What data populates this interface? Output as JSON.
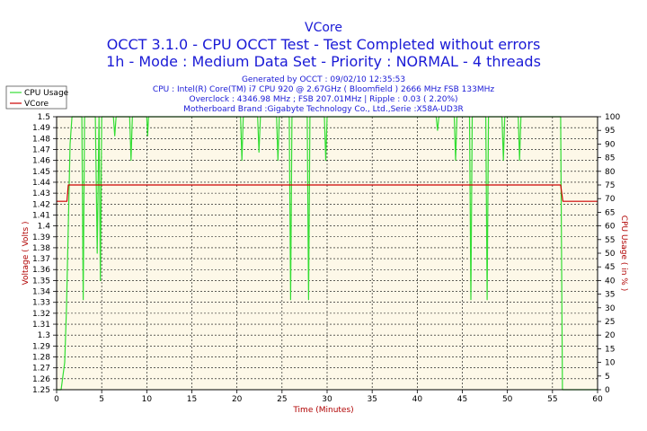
{
  "chart_data": {
    "type": "line",
    "title": "VCore",
    "subtitle_lines": [
      "OCCT 3.1.0 - CPU OCCT Test - Test Completed without errors",
      "1h - Mode : Medium Data Set - Priority : NORMAL - 4 threads"
    ],
    "info_lines": [
      "Generated by OCCT : 09/02/10 12:35:53",
      "CPU : Intel(R) Core(TM) i7 CPU 920 @ 2.67GHz ( Bloomfield ) 2666 MHz FSB 133MHz",
      "Overclock : 4346.98 MHz ; FSB 207.01MHz | Ripple : 0.03 ( 2.20%)",
      "Motherboard Brand :Gigabyte Technology Co., Ltd.,Serie :X58A-UD3R"
    ],
    "xlabel": "Time (Minutes)",
    "ylabel": "Voltage ( Volts )",
    "y2label": "CPU Usage ( in % )",
    "xlim": [
      0,
      60
    ],
    "ylim": [
      1.25,
      1.5
    ],
    "y2lim": [
      0,
      100
    ],
    "x_ticks": [
      "0",
      "5",
      "10",
      "15",
      "20",
      "25",
      "30",
      "35",
      "40",
      "45",
      "50",
      "55",
      "60"
    ],
    "y_ticks": [
      "1.25",
      "1.26",
      "1.27",
      "1.28",
      "1.29",
      "1.3",
      "1.31",
      "1.32",
      "1.33",
      "1.34",
      "1.35",
      "1.36",
      "1.37",
      "1.38",
      "1.39",
      "1.4",
      "1.41",
      "1.42",
      "1.43",
      "1.44",
      "1.45",
      "1.46",
      "1.47",
      "1.48",
      "1.49",
      "1.5"
    ],
    "y2_ticks": [
      "0",
      "5",
      "10",
      "15",
      "20",
      "25",
      "30",
      "35",
      "40",
      "45",
      "50",
      "55",
      "60",
      "65",
      "70",
      "75",
      "80",
      "85",
      "90",
      "95",
      "100"
    ],
    "grid": true,
    "legend_position": "top-left",
    "series": [
      {
        "name": "CPU Usage",
        "axis": "right",
        "color": "#33dd33",
        "points": [
          [
            0.0,
            0
          ],
          [
            0.5,
            0
          ],
          [
            0.9,
            10
          ],
          [
            1.1,
            30
          ],
          [
            1.3,
            60
          ],
          [
            1.5,
            90
          ],
          [
            1.7,
            100
          ],
          [
            2.8,
            100
          ],
          [
            2.95,
            33
          ],
          [
            3.1,
            100
          ],
          [
            4.3,
            100
          ],
          [
            4.5,
            50
          ],
          [
            4.7,
            100
          ],
          [
            4.85,
            40
          ],
          [
            5.0,
            100
          ],
          [
            6.3,
            100
          ],
          [
            6.45,
            93
          ],
          [
            6.6,
            100
          ],
          [
            8.1,
            100
          ],
          [
            8.25,
            84
          ],
          [
            8.4,
            100
          ],
          [
            10.0,
            100
          ],
          [
            10.1,
            93
          ],
          [
            10.2,
            100
          ],
          [
            20.4,
            100
          ],
          [
            20.55,
            84
          ],
          [
            20.7,
            100
          ],
          [
            22.3,
            100
          ],
          [
            22.45,
            87
          ],
          [
            22.6,
            100
          ],
          [
            24.4,
            100
          ],
          [
            24.55,
            84
          ],
          [
            24.7,
            100
          ],
          [
            25.8,
            100
          ],
          [
            25.95,
            33
          ],
          [
            26.1,
            100
          ],
          [
            27.8,
            100
          ],
          [
            27.95,
            33
          ],
          [
            28.1,
            100
          ],
          [
            29.7,
            100
          ],
          [
            29.85,
            84
          ],
          [
            30.0,
            100
          ],
          [
            42.1,
            100
          ],
          [
            42.25,
            95
          ],
          [
            42.4,
            100
          ],
          [
            44.1,
            100
          ],
          [
            44.25,
            84
          ],
          [
            44.4,
            100
          ],
          [
            45.8,
            100
          ],
          [
            45.95,
            33
          ],
          [
            46.1,
            100
          ],
          [
            47.6,
            100
          ],
          [
            47.75,
            33
          ],
          [
            47.9,
            100
          ],
          [
            49.4,
            100
          ],
          [
            49.55,
            84
          ],
          [
            49.7,
            100
          ],
          [
            51.2,
            100
          ],
          [
            51.35,
            84
          ],
          [
            51.5,
            100
          ],
          [
            55.9,
            100
          ],
          [
            56.1,
            0
          ],
          [
            56.3,
            0
          ],
          [
            60,
            0
          ]
        ]
      },
      {
        "name": "VCore",
        "axis": "left",
        "color": "#cc0000",
        "points": [
          [
            0.0,
            1.4225
          ],
          [
            1.15,
            1.4225
          ],
          [
            1.3,
            1.4375
          ],
          [
            55.9,
            1.4375
          ],
          [
            56.15,
            1.4225
          ],
          [
            60,
            1.4225
          ]
        ]
      }
    ]
  }
}
